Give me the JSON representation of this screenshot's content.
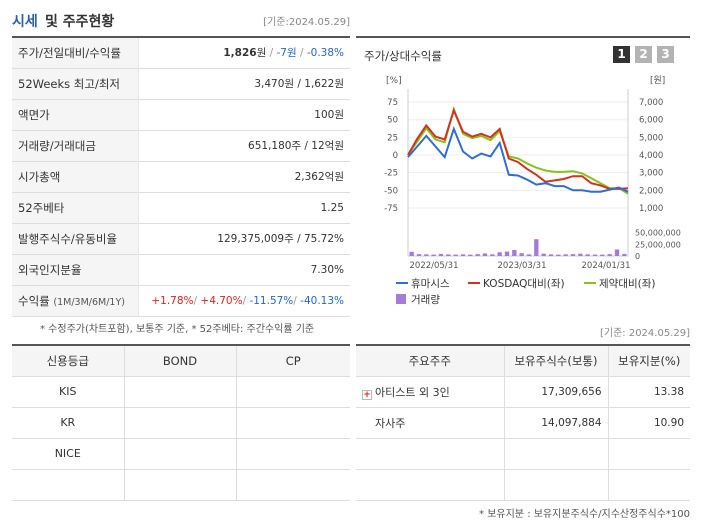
{
  "header": {
    "title_a": "시세",
    "title_b": "및 주주현황",
    "date": "[기준:2024.05.29]"
  },
  "price": {
    "rows": [
      {
        "label": "주가/전일대비/수익률",
        "price": "1,826",
        "unit": "원",
        "change": "-7원",
        "rate": "-0.38%"
      },
      {
        "label": "52Weeks 최고/최저",
        "value": "3,470원 / 1,622원"
      },
      {
        "label": "액면가",
        "value": "100원"
      },
      {
        "label": "거래량/거래대금",
        "value": "651,180주 / 12억원"
      },
      {
        "label": "시가총액",
        "value": "2,362억원"
      },
      {
        "label": "52주베타",
        "value": "1.25"
      },
      {
        "label": "발행주식수/유동비율",
        "value": "129,375,009주 / 75.72%"
      },
      {
        "label": "외국인지분율",
        "value": "7.30%"
      }
    ],
    "returns_label": "수익률",
    "returns_sub": "(1M/3M/6M/1Y)",
    "returns": [
      "+1.78%",
      "+4.70%",
      "-11.57%",
      "-40.13%"
    ]
  },
  "note1": "* 수정주가(차트포함), 보통주 기준, * 52주베타: 주간수익률 기준",
  "chart_panel": {
    "title": "주가/상대수익률",
    "buttons": [
      "1",
      "2",
      "3"
    ]
  },
  "chart_data": {
    "type": "line",
    "x_ticks": [
      "2022/05/31",
      "2023/03/31",
      "2024/01/31"
    ],
    "left_axis": {
      "unit": "[%]",
      "ticks": [
        75,
        50,
        25,
        0,
        -25,
        -50,
        -75
      ],
      "ylim": [
        -85,
        85
      ]
    },
    "right_axis": {
      "unit": "[원]",
      "ticks": [
        "7,000",
        "6,000",
        "5,000",
        "4,000",
        "3,000",
        "2,000",
        "1,000"
      ],
      "ylim": [
        500,
        7500
      ]
    },
    "volume_axis": {
      "ticks": [
        "50,000,000",
        "25,000,000",
        "0"
      ],
      "ylim": [
        0,
        60000000
      ]
    },
    "series": [
      {
        "name": "휴마시스",
        "color": "#2f6fd0",
        "values": [
          -3,
          12,
          27,
          12,
          -3,
          37,
          5,
          -5,
          2,
          -2,
          17,
          -28,
          -29,
          -35,
          -42,
          -40,
          -44,
          -44,
          -50,
          -50,
          -52,
          -52,
          -49,
          -46,
          -52
        ]
      },
      {
        "name": "KOSDAQ대비(좌)",
        "color": "#d0341f",
        "values": [
          0,
          23,
          42,
          26,
          22,
          63,
          33,
          26,
          30,
          25,
          37,
          -5,
          -10,
          -20,
          -28,
          -38,
          -36,
          -34,
          -30,
          -30,
          -40,
          -43,
          -48,
          -48,
          -47
        ]
      },
      {
        "name": "제약대비(좌)",
        "color": "#8bbf1f",
        "values": [
          0,
          19,
          38,
          22,
          18,
          65,
          30,
          24,
          27,
          21,
          34,
          -2,
          -5,
          -12,
          -18,
          -22,
          -24,
          -24,
          -23,
          -26,
          -33,
          -40,
          -47,
          -47,
          -55
        ]
      }
    ],
    "volume": {
      "name": "거래량",
      "color": "#a57bd6",
      "values": [
        9000000,
        4000000,
        3500000,
        3000000,
        4500000,
        3500000,
        3000000,
        3500000,
        3000000,
        4000000,
        5500000,
        3500000,
        8000000,
        9500000,
        13000000,
        6000000,
        3500000,
        36000000,
        5000000,
        3500000,
        3000000,
        3500000,
        4000000,
        5000000,
        3500000,
        3000000,
        3000000,
        4000000,
        14000000,
        4500000
      ]
    }
  },
  "credit": {
    "headers": [
      "신용등급",
      "BOND",
      "CP"
    ],
    "rows": [
      [
        "KIS",
        "",
        ""
      ],
      [
        "KR",
        "",
        ""
      ],
      [
        "NICE",
        "",
        ""
      ],
      [
        "",
        "",
        ""
      ]
    ]
  },
  "date2": "[기준: 2024.05.29]",
  "holders": {
    "headers": [
      "주요주주",
      "보유주식수(보통)",
      "보유지분(%)"
    ],
    "rows": [
      {
        "name": "아티스트 외 3인",
        "shares": "17,309,656",
        "pct": "13.38",
        "expand": true
      },
      {
        "name": "자사주",
        "shares": "14,097,884",
        "pct": "10.90",
        "expand": false
      }
    ]
  },
  "note2": "* 보유지분 : 보유지분주식수/지수산정주식수*100"
}
